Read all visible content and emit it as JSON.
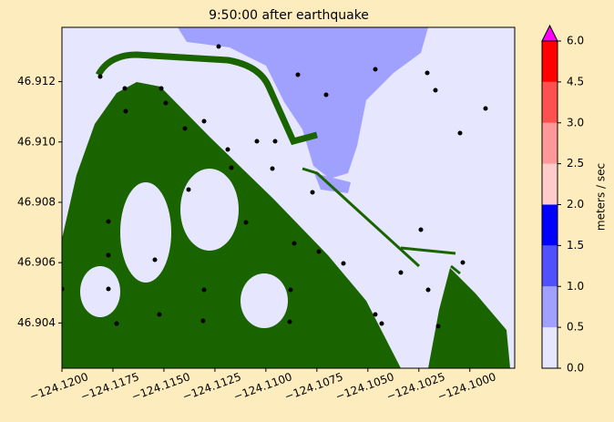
{
  "chart_data": {
    "type": "map",
    "title": "9:50:00 after earthquake",
    "xlim": [
      -124.12,
      -124.0978
    ],
    "ylim": [
      46.9025,
      46.9138
    ],
    "xticks": [
      {
        "value": -124.12,
        "label": "−124.1200"
      },
      {
        "value": -124.1175,
        "label": "−124.1175"
      },
      {
        "value": -124.115,
        "label": "−124.1150"
      },
      {
        "value": -124.1125,
        "label": "−124.1125"
      },
      {
        "value": -124.11,
        "label": "−124.1100"
      },
      {
        "value": -124.1075,
        "label": "−124.1075"
      },
      {
        "value": -124.105,
        "label": "−124.1050"
      },
      {
        "value": -124.1025,
        "label": "−124.1025"
      },
      {
        "value": -124.1,
        "label": "−124.1000"
      }
    ],
    "yticks": [
      46.904,
      46.906,
      46.908,
      {
        "value": 46.91,
        "label": "46.910"
      },
      46.912
    ],
    "land_color": "#1a6400",
    "colorbar": {
      "label": "meters / sec",
      "ticks": [
        {
          "value": 0,
          "label": "0.0"
        },
        {
          "value": 0.5,
          "label": "0.5"
        },
        {
          "value": 1,
          "label": "1.0"
        },
        {
          "value": 1.5,
          "label": "1.5"
        },
        {
          "value": 2,
          "label": "2.0"
        },
        {
          "value": 2.5,
          "label": "2.5"
        },
        {
          "value": 3,
          "label": "3.0"
        },
        {
          "value": 4.5,
          "label": "4.5"
        },
        {
          "value": 6,
          "label": "6.0"
        }
      ],
      "colors": [
        "#e6e6ff",
        "#a0a0ff",
        "#5050ff",
        "#0000ff",
        "#ffcccc",
        "#ff9999",
        "#ff5050",
        "#ff0000"
      ],
      "extend_color": "#ff00ff"
    }
  }
}
